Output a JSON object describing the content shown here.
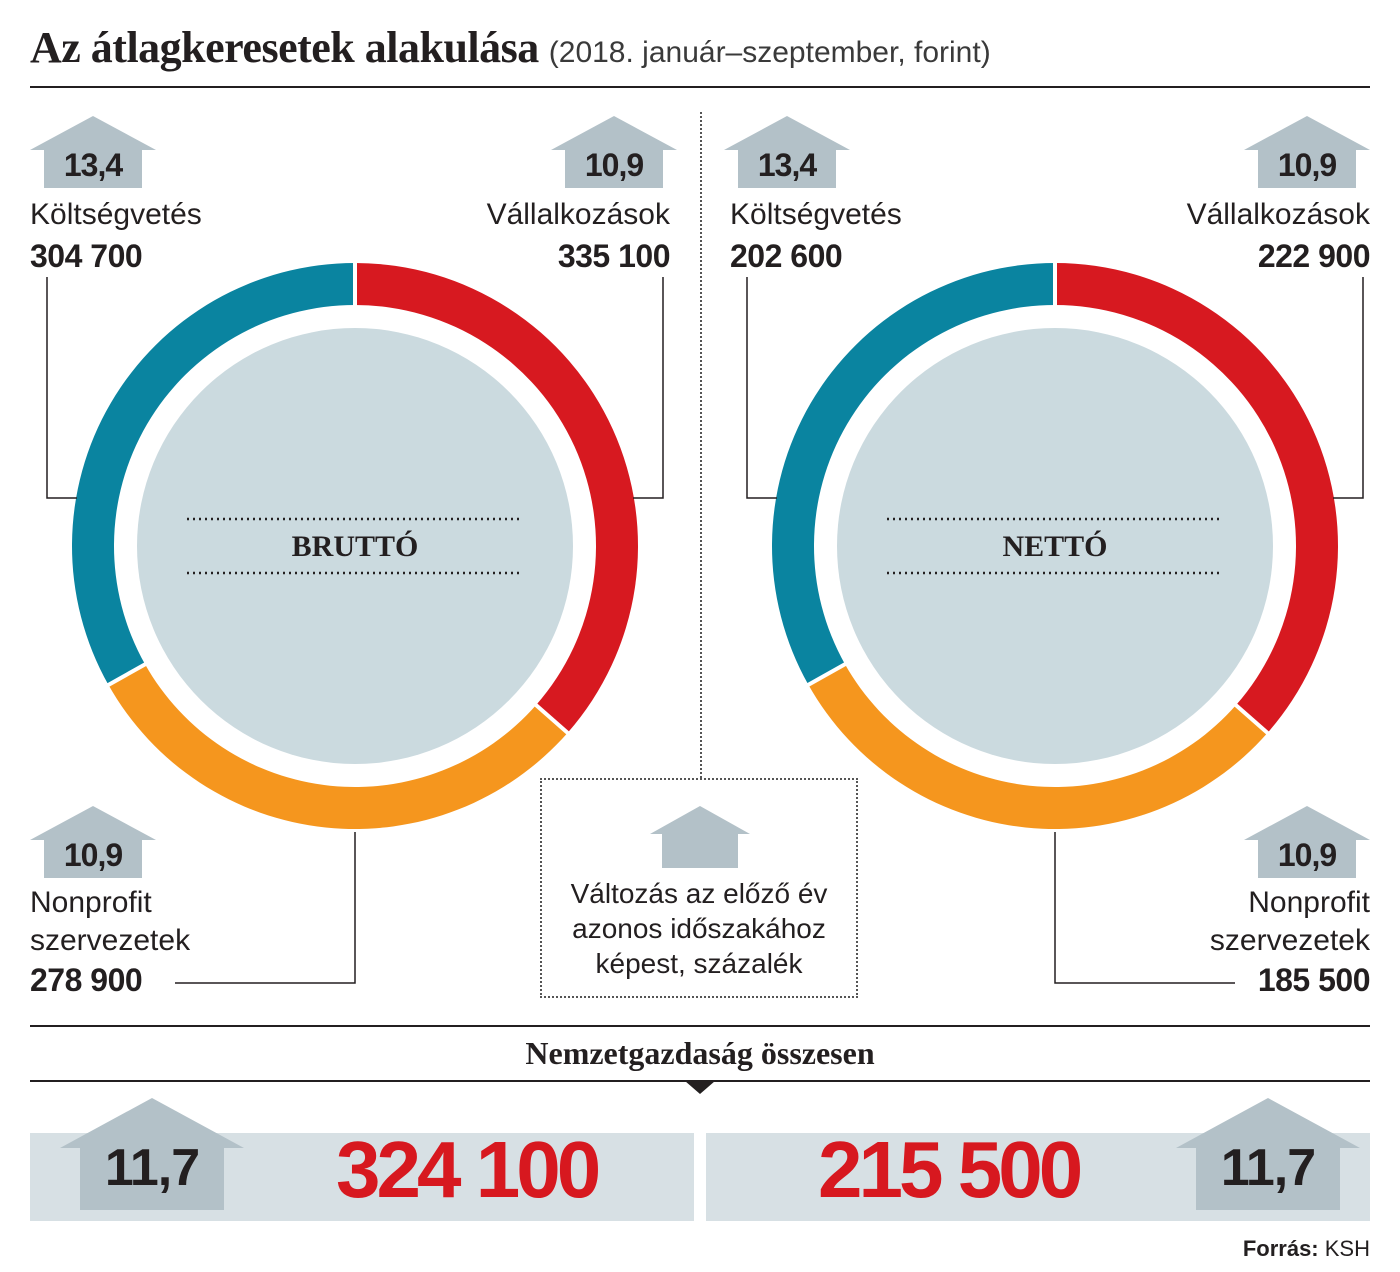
{
  "title": "Az átlagkeresetek alakulása",
  "subtitle": "(2018. január–szeptember, forint)",
  "chart_data": [
    {
      "type": "pie",
      "center_label": "BRUTTÓ",
      "segments": [
        {
          "label": "Vállalkozások",
          "value": 335100,
          "change": "10,9",
          "color": "#d71920"
        },
        {
          "label": "Nonprofit szervezetek",
          "value": 278900,
          "change": "10,9",
          "color": "#f5961e"
        },
        {
          "label": "Költségvetés",
          "value": 304700,
          "change": "13,4",
          "color": "#0a84a0"
        }
      ],
      "value_labels": {
        "koltsegvetes": "304 700",
        "vallalkozasok": "335 100",
        "nonprofit": "278 900"
      }
    },
    {
      "type": "pie",
      "center_label": "NETTÓ",
      "segments": [
        {
          "label": "Vállalkozások",
          "value": 222900,
          "change": "10,9",
          "color": "#d71920"
        },
        {
          "label": "Nonprofit szervezetek",
          "value": 185500,
          "change": "10,9",
          "color": "#f5961e"
        },
        {
          "label": "Költségvetés",
          "value": 202600,
          "change": "13,4",
          "color": "#0a84a0"
        }
      ],
      "value_labels": {
        "koltsegvetes": "202 600",
        "vallalkozasok": "222 900",
        "nonprofit": "185 500"
      }
    }
  ],
  "labels": {
    "koltsegvetes": "Költségvetés",
    "vallalkozasok": "Vállalkozások",
    "nonprofit_line1": "Nonprofit",
    "nonprofit_line2": "szervezetek"
  },
  "changes": {
    "koltsegvetes": "13,4",
    "vallalkozasok": "10,9",
    "nonprofit": "10,9"
  },
  "legend": {
    "line1": "Változás az előző év",
    "line2": "azonos időszakához",
    "line3": "képest, százalék"
  },
  "totals": {
    "heading": "Nemzetgazdaság összesen",
    "brutto_value": "324 100",
    "brutto_change": "11,7",
    "netto_value": "215 500",
    "netto_change": "11,7"
  },
  "source": {
    "label": "Forrás:",
    "value": "KSH"
  },
  "colors": {
    "inner_circle": "#cbdadf",
    "arrow": "#b3c1c8",
    "band": "#d7e0e4",
    "total_text": "#d7181f"
  },
  "icons": {
    "arrow": "up-arrow-icon",
    "pointer": "down-triangle-icon"
  }
}
